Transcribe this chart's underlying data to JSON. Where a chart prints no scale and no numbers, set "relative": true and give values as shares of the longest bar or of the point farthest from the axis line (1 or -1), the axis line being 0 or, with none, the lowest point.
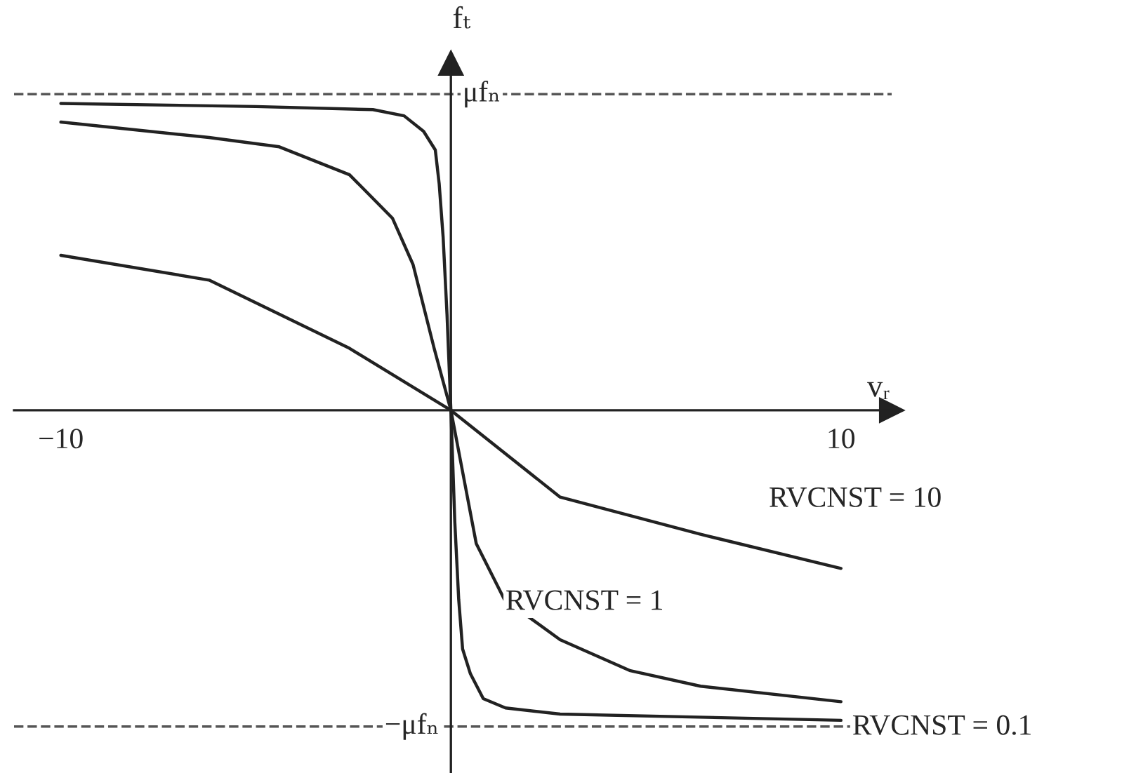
{
  "chart_data": {
    "type": "line",
    "xlabel": "vᵣ",
    "ylabel": "fₜ",
    "relative": true,
    "xlim": [
      -11.2,
      11.3
    ],
    "xticks": [
      {
        "value": -10,
        "label": "−10"
      },
      {
        "value": 10,
        "label": "10"
      }
    ],
    "series": [
      {
        "color": "#222222",
        "x": [
          -10,
          -5,
          -2,
          -1.2,
          -0.7,
          -0.4,
          -0.3,
          -0.2,
          -0.1,
          0,
          0.1,
          0.2,
          0.3,
          0.5,
          0.83,
          1.4,
          2.8,
          10
        ],
        "values": [
          0.99,
          0.98,
          0.97,
          0.95,
          0.9,
          0.84,
          0.73,
          0.56,
          0.31,
          0,
          -0.36,
          -0.61,
          -0.77,
          -0.85,
          -0.93,
          -0.96,
          -0.98,
          -1
        ]
      },
      {
        "color": "#222222",
        "x": [
          -10,
          -6.2,
          -4.4,
          -2.6,
          -1.5,
          -0.97,
          -0.43,
          0,
          0.65,
          1.37,
          2.8,
          4.6,
          6.4,
          10
        ],
        "values": [
          0.93,
          0.88,
          0.85,
          0.76,
          0.62,
          0.47,
          0.2,
          0,
          -0.43,
          -0.61,
          -0.74,
          -0.84,
          -0.89,
          -0.94
        ]
      },
      {
        "color": "#222222",
        "x": [
          -10,
          -6.2,
          -2.6,
          0,
          2.8,
          6.4,
          10
        ],
        "values": [
          0.5,
          0.42,
          0.2,
          0,
          -0.28,
          -0.4,
          -0.51
        ]
      }
    ],
    "ref_lines": [
      {
        "axis": "y",
        "value": 1.02,
        "label": "μfₙ",
        "line_style": "dashed",
        "color": "#555555"
      },
      {
        "axis": "y",
        "value": -1.02,
        "label": "−μfₙ",
        "line_style": "dashed",
        "color": "#555555"
      }
    ],
    "annotations": [
      "RVCNST = 10",
      "RVCNST = 1",
      "RVCNST = 0.1"
    ],
    "grid": false,
    "legend": false,
    "marker": "none",
    "line_style": "solid"
  }
}
